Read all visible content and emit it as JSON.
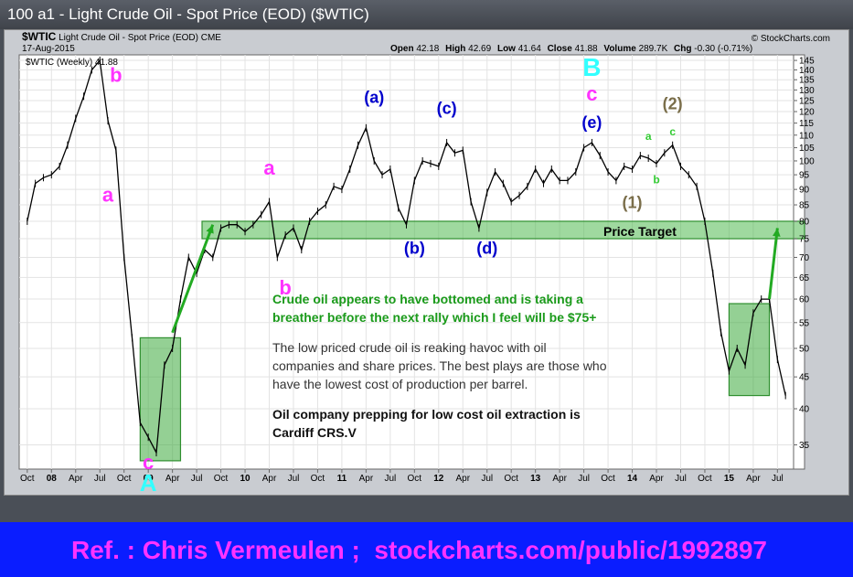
{
  "window": {
    "title": "100 a1 - Light Crude Oil - Spot Price (EOD) ($WTIC)"
  },
  "chart_header": {
    "symbol": "$WTIC",
    "name": "Light Crude Oil - Spot Price (EOD)",
    "exchange": "CME",
    "date": "17-Aug-2015",
    "open_label": "Open",
    "open": "42.18",
    "high_label": "High",
    "high": "42.69",
    "low_label": "Low",
    "low": "41.64",
    "close_label": "Close",
    "close": "41.88",
    "volume_label": "Volume",
    "volume": "289.7K",
    "chg_label": "Chg",
    "chg": "-0.30 (-0.71%)",
    "brand": "© StockCharts.com",
    "legend": "$WTIC (Weekly) 41.88"
  },
  "chart_data": {
    "type": "line",
    "series": [
      {
        "name": "$WTIC (Weekly)",
        "color": "#000000",
        "points": [
          [
            "2007-10",
            80
          ],
          [
            "2007-11",
            92
          ],
          [
            "2007-12",
            94
          ],
          [
            "2008-01",
            95
          ],
          [
            "2008-02",
            98
          ],
          [
            "2008-03",
            106
          ],
          [
            "2008-04",
            117
          ],
          [
            "2008-05",
            127
          ],
          [
            "2008-06",
            140
          ],
          [
            "2008-07",
            145
          ],
          [
            "2008-08",
            116
          ],
          [
            "2008-09",
            104
          ],
          [
            "2008-10",
            70
          ],
          [
            "2008-11",
            52
          ],
          [
            "2008-12",
            38
          ],
          [
            "2009-01",
            36
          ],
          [
            "2009-02",
            34
          ],
          [
            "2009-03",
            47
          ],
          [
            "2009-04",
            50
          ],
          [
            "2009-05",
            60
          ],
          [
            "2009-06",
            70
          ],
          [
            "2009-07",
            66
          ],
          [
            "2009-08",
            72
          ],
          [
            "2009-09",
            70
          ],
          [
            "2009-10",
            78
          ],
          [
            "2009-11",
            79
          ],
          [
            "2009-12",
            79
          ],
          [
            "2010-01",
            77
          ],
          [
            "2010-02",
            79
          ],
          [
            "2010-03",
            82
          ],
          [
            "2010-04",
            86
          ],
          [
            "2010-05",
            70
          ],
          [
            "2010-06",
            76
          ],
          [
            "2010-07",
            78
          ],
          [
            "2010-08",
            72
          ],
          [
            "2010-09",
            80
          ],
          [
            "2010-10",
            83
          ],
          [
            "2010-11",
            85
          ],
          [
            "2010-12",
            91
          ],
          [
            "2011-01",
            90
          ],
          [
            "2011-02",
            97
          ],
          [
            "2011-03",
            106
          ],
          [
            "2011-04",
            113
          ],
          [
            "2011-05",
            100
          ],
          [
            "2011-06",
            95
          ],
          [
            "2011-07",
            97
          ],
          [
            "2011-08",
            84
          ],
          [
            "2011-09",
            79
          ],
          [
            "2011-10",
            93
          ],
          [
            "2011-11",
            100
          ],
          [
            "2011-12",
            99
          ],
          [
            "2012-01",
            98
          ],
          [
            "2012-02",
            107
          ],
          [
            "2012-03",
            103
          ],
          [
            "2012-04",
            104
          ],
          [
            "2012-05",
            86
          ],
          [
            "2012-06",
            78
          ],
          [
            "2012-07",
            89
          ],
          [
            "2012-08",
            96
          ],
          [
            "2012-09",
            92
          ],
          [
            "2012-10",
            86
          ],
          [
            "2012-11",
            88
          ],
          [
            "2012-12",
            91
          ],
          [
            "2013-01",
            97
          ],
          [
            "2013-02",
            92
          ],
          [
            "2013-03",
            97
          ],
          [
            "2013-04",
            93
          ],
          [
            "2013-05",
            93
          ],
          [
            "2013-06",
            96
          ],
          [
            "2013-07",
            105
          ],
          [
            "2013-08",
            107
          ],
          [
            "2013-09",
            102
          ],
          [
            "2013-10",
            96
          ],
          [
            "2013-11",
            93
          ],
          [
            "2013-12",
            98
          ],
          [
            "2014-01",
            97
          ],
          [
            "2014-02",
            102
          ],
          [
            "2014-03",
            101
          ],
          [
            "2014-04",
            99
          ],
          [
            "2014-05",
            103
          ],
          [
            "2014-06",
            106
          ],
          [
            "2014-07",
            98
          ],
          [
            "2014-08",
            95
          ],
          [
            "2014-09",
            91
          ],
          [
            "2014-10",
            80
          ],
          [
            "2014-11",
            66
          ],
          [
            "2014-12",
            53
          ],
          [
            "2015-01",
            46
          ],
          [
            "2015-02",
            50
          ],
          [
            "2015-03",
            47
          ],
          [
            "2015-04",
            57
          ],
          [
            "2015-05",
            60
          ],
          [
            "2015-06",
            60
          ],
          [
            "2015-07",
            48
          ],
          [
            "2015-08",
            42
          ]
        ]
      }
    ],
    "x_ticks": [
      "Oct",
      "08",
      "Apr",
      "Jul",
      "Oct",
      "09",
      "Apr",
      "Jul",
      "Oct",
      "10",
      "Apr",
      "Jul",
      "Oct",
      "11",
      "Apr",
      "Jul",
      "Oct",
      "12",
      "Apr",
      "Jul",
      "Oct",
      "13",
      "Apr",
      "Jul",
      "Oct",
      "14",
      "Apr",
      "Jul",
      "Oct",
      "15",
      "Apr",
      "Jul"
    ],
    "x_tick_dates": [
      "2007-10",
      "2008-01",
      "2008-04",
      "2008-07",
      "2008-10",
      "2009-01",
      "2009-04",
      "2009-07",
      "2009-10",
      "2010-01",
      "2010-04",
      "2010-07",
      "2010-10",
      "2011-01",
      "2011-04",
      "2011-07",
      "2011-10",
      "2012-01",
      "2012-04",
      "2012-07",
      "2012-10",
      "2013-01",
      "2013-04",
      "2013-07",
      "2013-10",
      "2014-01",
      "2014-04",
      "2014-07",
      "2014-10",
      "2015-01",
      "2015-04",
      "2015-07"
    ],
    "y_ticks": [
      35,
      40,
      45,
      50,
      55,
      60,
      65,
      70,
      75,
      80,
      85,
      90,
      95,
      100,
      105,
      110,
      115,
      120,
      125,
      130,
      135,
      140,
      145
    ],
    "y_scale": "log",
    "ylim": [
      32,
      148
    ],
    "xlim": [
      "2007-09",
      "2015-09"
    ],
    "y_axis_side": "right",
    "grid": true,
    "price_target": {
      "label": "Price Target",
      "low": 75,
      "high": 80
    },
    "boxes": [
      {
        "name": "2009-bottom",
        "x0": "2008-12",
        "x1": "2009-05",
        "low": 33,
        "high": 52
      },
      {
        "name": "2015-bottom",
        "x0": "2015-01",
        "x1": "2015-06",
        "low": 42,
        "high": 59
      }
    ],
    "arrows": [
      {
        "name": "2009-rally-arrow",
        "from": [
          "2009-04",
          53
        ],
        "to": [
          "2009-09",
          79
        ]
      },
      {
        "name": "2015-rally-arrow",
        "from": [
          "2015-06",
          60
        ],
        "to": [
          "2015-07",
          78
        ]
      }
    ],
    "wave_labels": [
      {
        "text": "b",
        "x": "2008-09",
        "y": 134,
        "color": "#ff33ff",
        "size": 22
      },
      {
        "text": "a",
        "x": "2008-08",
        "y": 86,
        "color": "#ff33ff",
        "size": 22
      },
      {
        "text": "c",
        "x": "2009-01",
        "y": 32,
        "color": "#ff33ff",
        "size": 22
      },
      {
        "text": "A",
        "x": "2009-01",
        "y": 29.5,
        "color": "#33ffff",
        "size": 26
      },
      {
        "text": "a",
        "x": "2010-04",
        "y": 95,
        "color": "#ff33ff",
        "size": 22
      },
      {
        "text": "b",
        "x": "2010-06",
        "y": 61,
        "color": "#ff33ff",
        "size": 22
      },
      {
        "text": "(a)",
        "x": "2011-05",
        "y": 124,
        "color": "#0000cc",
        "size": 18
      },
      {
        "text": "(b)",
        "x": "2011-10",
        "y": 71,
        "color": "#0000cc",
        "size": 18
      },
      {
        "text": "(c)",
        "x": "2012-02",
        "y": 119,
        "color": "#0000cc",
        "size": 18
      },
      {
        "text": "(d)",
        "x": "2012-07",
        "y": 71,
        "color": "#0000cc",
        "size": 18
      },
      {
        "text": "(e)",
        "x": "2013-08",
        "y": 113,
        "color": "#0000cc",
        "size": 18
      },
      {
        "text": "c",
        "x": "2013-08",
        "y": 125,
        "color": "#ff33ff",
        "size": 22
      },
      {
        "text": "B",
        "x": "2013-08",
        "y": 137,
        "color": "#33ffff",
        "size": 28
      },
      {
        "text": "(1)",
        "x": "2014-01",
        "y": 84,
        "color": "#7a6e4a",
        "size": 18
      },
      {
        "text": "(2)",
        "x": "2014-06",
        "y": 121,
        "color": "#7a6e4a",
        "size": 18
      },
      {
        "text": "a",
        "x": "2014-03",
        "y": 108,
        "color": "#33cc33",
        "size": 12
      },
      {
        "text": "b",
        "x": "2014-04",
        "y": 92,
        "color": "#33cc33",
        "size": 12
      },
      {
        "text": "c",
        "x": "2014-06",
        "y": 110,
        "color": "#33cc33",
        "size": 12
      }
    ],
    "annotations": [
      {
        "text": "Crude oil appears to have bottomed and is taking a",
        "color": "#1a9a1a",
        "bold": true,
        "size": 14
      },
      {
        "text": "breather before the next rally which I feel will be $75+",
        "color": "#1a9a1a",
        "bold": true,
        "size": 14
      },
      {
        "text": "The low priced crude oil is reaking havoc with oil",
        "color": "#333333",
        "bold": false,
        "size": 14
      },
      {
        "text": "companies and share prices. The best plays are those who",
        "color": "#333333",
        "bold": false,
        "size": 14
      },
      {
        "text": "have the lowest cost of production per barrel.",
        "color": "#333333",
        "bold": false,
        "size": 14
      },
      {
        "text": "Oil company prepping for low cost oil extraction is",
        "color": "#111111",
        "bold": true,
        "size": 14
      },
      {
        "text": "Cardiff CRS.V",
        "color": "#111111",
        "bold": true,
        "size": 14
      }
    ]
  },
  "footer": {
    "reference": "Ref. : Chris Vermeulen ;  stockcharts.com/public/1992897"
  }
}
